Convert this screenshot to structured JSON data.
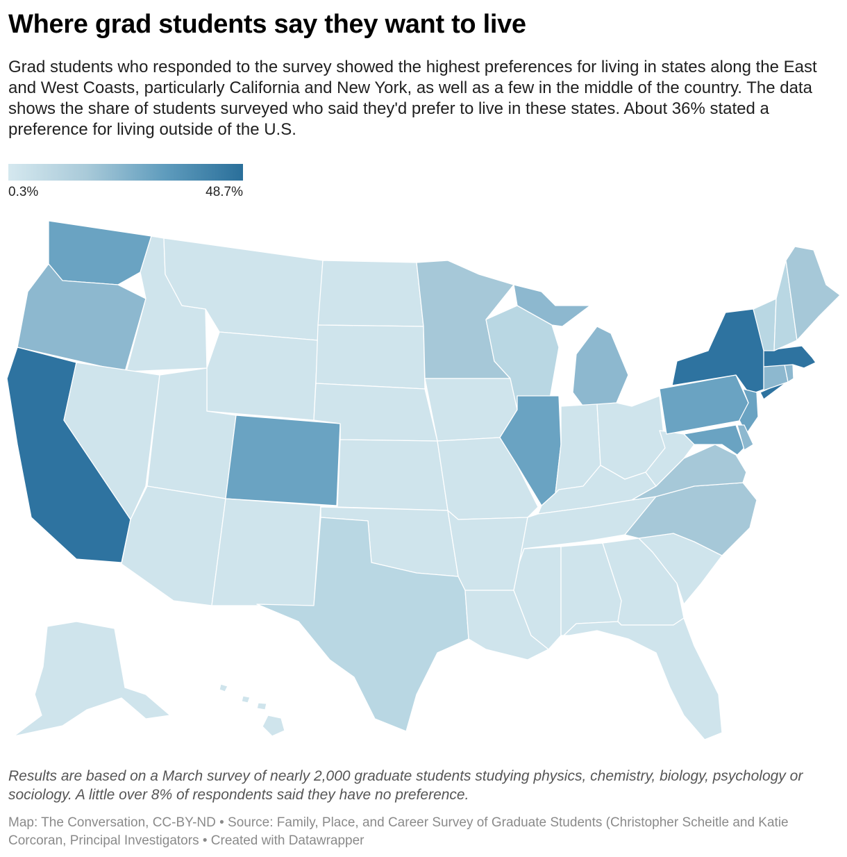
{
  "header": {
    "title": "Where grad students say they want to live",
    "subtitle": "Grad students who responded to the survey showed the highest preferences for living in states along the East and West Coasts, particularly California and New York, as well as a few in the middle of the country. The data shows the share of students surveyed who said they'd prefer to live in these states. About 36% stated a preference for living outside of the U.S."
  },
  "legend": {
    "min_label": "0.3%",
    "max_label": "48.7%",
    "min_value": 0.3,
    "max_value": 48.7,
    "colors": [
      "#d5e8ef",
      "#a9cad9",
      "#5f9cbd",
      "#2a6f9a"
    ]
  },
  "map_data": {
    "type": "choropleth",
    "region": "United States",
    "unit": "percent of students surveyed",
    "tiers": {
      "highest": {
        "color": "#2e73a0",
        "states": [
          "California",
          "New York",
          "Massachusetts"
        ]
      },
      "high": {
        "color": "#6aa3c2",
        "states": [
          "Washington",
          "Colorado",
          "Illinois",
          "Pennsylvania",
          "Maryland",
          "New Jersey"
        ]
      },
      "medium": {
        "color": "#8db8cf",
        "states": [
          "Oregon",
          "Michigan",
          "Connecticut",
          "Rhode Island",
          "Delaware"
        ]
      },
      "low_medium": {
        "color": "#a6c8d8",
        "states": [
          "Minnesota",
          "North Carolina",
          "Virginia",
          "Maine"
        ]
      },
      "low": {
        "color": "#b9d7e3",
        "states": [
          "Texas",
          "Wisconsin",
          "New Hampshire",
          "Vermont"
        ]
      },
      "lowest": {
        "color": "#cfe4ec",
        "states": [
          "Idaho",
          "Montana",
          "Wyoming",
          "North Dakota",
          "South Dakota",
          "Nebraska",
          "Kansas",
          "Oklahoma",
          "Nevada",
          "Utah",
          "Arizona",
          "New Mexico",
          "Iowa",
          "Missouri",
          "Arkansas",
          "Louisiana",
          "Mississippi",
          "Alabama",
          "Georgia",
          "Florida",
          "South Carolina",
          "Tennessee",
          "Kentucky",
          "Indiana",
          "Ohio",
          "West Virginia",
          "Alaska",
          "Hawaii"
        ]
      }
    }
  },
  "footer": {
    "notes": "Results are based on a March survey of nearly 2,000 graduate students studying physics, chemistry, biology, psychology or sociology. A little over 8% of respondents said they have no preference.",
    "source": "Map: The Conversation, CC-BY-ND • Source: Family, Place, and Career Survey of Graduate Students (Christopher Scheitle and Katie Corcoran, Principal Investigators • Created with Datawrapper"
  }
}
